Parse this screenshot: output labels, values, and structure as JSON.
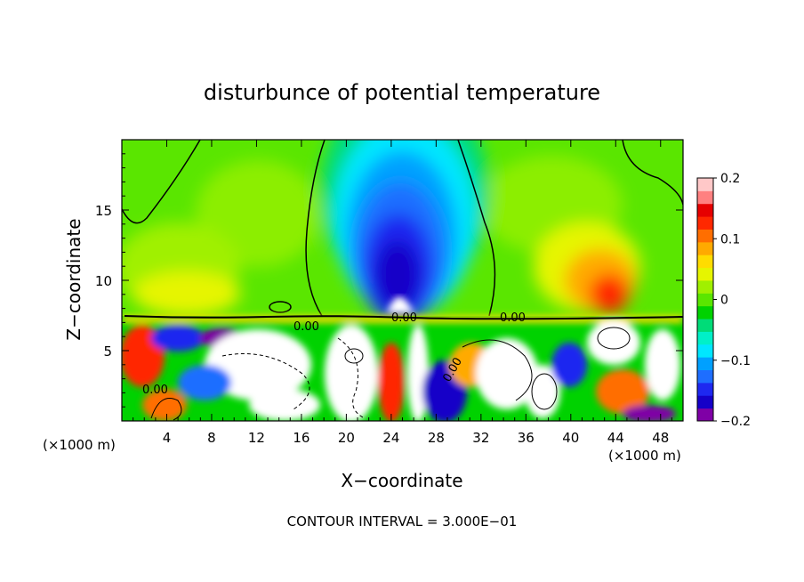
{
  "chart_data": {
    "type": "heatmap",
    "title": "disturbunce of potential temperature",
    "xlabel": "X−coordinate",
    "ylabel": "Z−coordinate",
    "x_unit_left": "(×1000 m)",
    "x_unit_right": "(×1000 m)",
    "xlim": [
      0,
      50
    ],
    "ylim": [
      0,
      20
    ],
    "x_ticks": [
      4,
      8,
      12,
      16,
      20,
      24,
      28,
      32,
      36,
      40,
      44,
      48
    ],
    "y_ticks": [
      5,
      10,
      15
    ],
    "colorbar": {
      "range": [
        -0.2,
        0.2
      ],
      "tick_values": [
        0.2,
        0.1,
        0,
        -0.1,
        -0.2
      ],
      "tick_labels": [
        "0.2",
        "0.1",
        "0",
        "−0.1",
        "−0.2"
      ],
      "colors": [
        "#7f00a6",
        "#1500c8",
        "#1e28f0",
        "#1e6eff",
        "#00a0ff",
        "#00e6ff",
        "#00f0c8",
        "#00dc78",
        "#00d200",
        "#5ae600",
        "#a0f000",
        "#e6f500",
        "#ffdc00",
        "#ffaa00",
        "#ff6e00",
        "#ff2800",
        "#e60000",
        "#ff8080",
        "#ffc8c8"
      ]
    },
    "contour_labels": [
      "0.00",
      "0.00",
      "0.00",
      "0.00",
      "0.00"
    ],
    "footer": "CONTOUR INTERVAL = 3.000E−01",
    "field_description_regions": [
      {
        "region": "upper background",
        "value": 0.03
      },
      {
        "region": "central cold plume x 18-32 km, z 7.5-20 km",
        "min": -0.2
      },
      {
        "region": "warm patch near x 43 km, z 8-12 km",
        "max": 0.15
      },
      {
        "region": "turbulent layer z 0-7.5 km",
        "min": -0.2,
        "max": 0.2
      }
    ]
  }
}
